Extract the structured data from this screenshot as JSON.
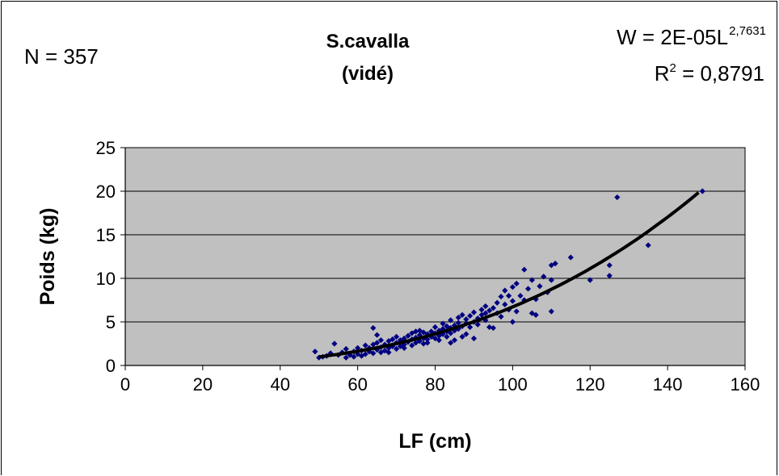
{
  "annotations": {
    "n": "N = 357",
    "title_line1": "S.cavalla",
    "title_line2": "(vidé)",
    "equation_base": "W = 2E-05L",
    "equation_exp": "2,7631",
    "r2_label": "R",
    "r2_sup": "2",
    "r2_value": " = 0,8791"
  },
  "chart_data": {
    "type": "scatter",
    "title": "S.cavalla (vidé)",
    "xlabel": "LF (cm)",
    "ylabel": "Poids (kg)",
    "xlim": [
      0,
      160
    ],
    "ylim": [
      0,
      25
    ],
    "xticks": [
      "0",
      "20",
      "40",
      "60",
      "80",
      "100",
      "120",
      "140",
      "160"
    ],
    "yticks": [
      "0",
      "5",
      "10",
      "15",
      "20",
      "25"
    ],
    "grid": "horizontal",
    "plot_background": "#c0c0c0",
    "marker_color": "#000080",
    "trendline": {
      "type": "power",
      "a": 2e-05,
      "b": 2.7631,
      "x_range": [
        50,
        148
      ],
      "color": "#000000"
    },
    "series": [
      {
        "points": [
          [
            49,
            1.6
          ],
          [
            50,
            0.9
          ],
          [
            51,
            1.0
          ],
          [
            52,
            1.1
          ],
          [
            53,
            1.4
          ],
          [
            54,
            2.5
          ],
          [
            55,
            1.2
          ],
          [
            56,
            1.5
          ],
          [
            57,
            1.9
          ],
          [
            57,
            0.9
          ],
          [
            58,
            1.2
          ],
          [
            59,
            1.0
          ],
          [
            59,
            1.6
          ],
          [
            60,
            1.3
          ],
          [
            60,
            2.0
          ],
          [
            61,
            1.1
          ],
          [
            61,
            1.7
          ],
          [
            62,
            1.3
          ],
          [
            62,
            2.3
          ],
          [
            63,
            1.6
          ],
          [
            63,
            2.0
          ],
          [
            64,
            1.4
          ],
          [
            64,
            2.4
          ],
          [
            64,
            4.3
          ],
          [
            65,
            1.8
          ],
          [
            65,
            2.6
          ],
          [
            65,
            3.5
          ],
          [
            66,
            1.5
          ],
          [
            66,
            2.1
          ],
          [
            66,
            2.9
          ],
          [
            67,
            1.7
          ],
          [
            67,
            2.4
          ],
          [
            68,
            2.0
          ],
          [
            68,
            2.8
          ],
          [
            68,
            1.5
          ],
          [
            69,
            2.2
          ],
          [
            69,
            3.0
          ],
          [
            70,
            1.9
          ],
          [
            70,
            2.6
          ],
          [
            70,
            3.3
          ],
          [
            71,
            2.2
          ],
          [
            71,
            2.9
          ],
          [
            72,
            2.4
          ],
          [
            72,
            3.1
          ],
          [
            72,
            2.0
          ],
          [
            73,
            2.7
          ],
          [
            73,
            3.4
          ],
          [
            74,
            2.3
          ],
          [
            74,
            3.0
          ],
          [
            74,
            3.7
          ],
          [
            75,
            2.6
          ],
          [
            75,
            3.2
          ],
          [
            75,
            3.9
          ],
          [
            76,
            2.8
          ],
          [
            76,
            3.5
          ],
          [
            76,
            4.0
          ],
          [
            77,
            2.5
          ],
          [
            77,
            3.1
          ],
          [
            77,
            3.8
          ],
          [
            78,
            3.0
          ],
          [
            78,
            3.6
          ],
          [
            78,
            2.6
          ],
          [
            79,
            3.3
          ],
          [
            79,
            3.9
          ],
          [
            80,
            3.1
          ],
          [
            80,
            3.7
          ],
          [
            80,
            4.4
          ],
          [
            81,
            3.4
          ],
          [
            81,
            4.0
          ],
          [
            81,
            2.9
          ],
          [
            82,
            3.6
          ],
          [
            82,
            4.2
          ],
          [
            82,
            4.8
          ],
          [
            83,
            3.3
          ],
          [
            83,
            3.9
          ],
          [
            83,
            4.5
          ],
          [
            84,
            3.7
          ],
          [
            84,
            4.3
          ],
          [
            84,
            5.2
          ],
          [
            84,
            2.6
          ],
          [
            85,
            4.0
          ],
          [
            85,
            4.6
          ],
          [
            85,
            2.9
          ],
          [
            86,
            4.2
          ],
          [
            86,
            4.9
          ],
          [
            86,
            5.5
          ],
          [
            87,
            4.5
          ],
          [
            87,
            3.3
          ],
          [
            87,
            5.8
          ],
          [
            88,
            4.8
          ],
          [
            88,
            3.6
          ],
          [
            88,
            5.3
          ],
          [
            89,
            4.4
          ],
          [
            89,
            5.7
          ],
          [
            90,
            5.0
          ],
          [
            90,
            3.1
          ],
          [
            90,
            6.1
          ],
          [
            91,
            5.4
          ],
          [
            91,
            4.7
          ],
          [
            92,
            5.8
          ],
          [
            92,
            6.4
          ],
          [
            93,
            6.0
          ],
          [
            93,
            5.2
          ],
          [
            93,
            6.8
          ],
          [
            94,
            6.3
          ],
          [
            94,
            4.4
          ],
          [
            95,
            6.6
          ],
          [
            95,
            4.3
          ],
          [
            96,
            7.2
          ],
          [
            96,
            6.0
          ],
          [
            97,
            7.9
          ],
          [
            97,
            5.6
          ],
          [
            98,
            8.6
          ],
          [
            98,
            7.0
          ],
          [
            99,
            6.4
          ],
          [
            99,
            8.0
          ],
          [
            100,
            5.0
          ],
          [
            100,
            7.4
          ],
          [
            100,
            9.0
          ],
          [
            101,
            9.4
          ],
          [
            101,
            6.2
          ],
          [
            102,
            8.0
          ],
          [
            103,
            11.0
          ],
          [
            103,
            7.5
          ],
          [
            104,
            8.8
          ],
          [
            105,
            9.8
          ],
          [
            105,
            6.0
          ],
          [
            106,
            7.6
          ],
          [
            106,
            5.8
          ],
          [
            107,
            9.1
          ],
          [
            108,
            10.2
          ],
          [
            109,
            8.4
          ],
          [
            110,
            11.5
          ],
          [
            110,
            6.2
          ],
          [
            110,
            9.8
          ],
          [
            111,
            11.7
          ],
          [
            115,
            12.4
          ],
          [
            120,
            9.8
          ],
          [
            125,
            11.5
          ],
          [
            125,
            10.3
          ],
          [
            127,
            19.3
          ],
          [
            135,
            13.8
          ],
          [
            149,
            20.0
          ]
        ]
      }
    ]
  }
}
